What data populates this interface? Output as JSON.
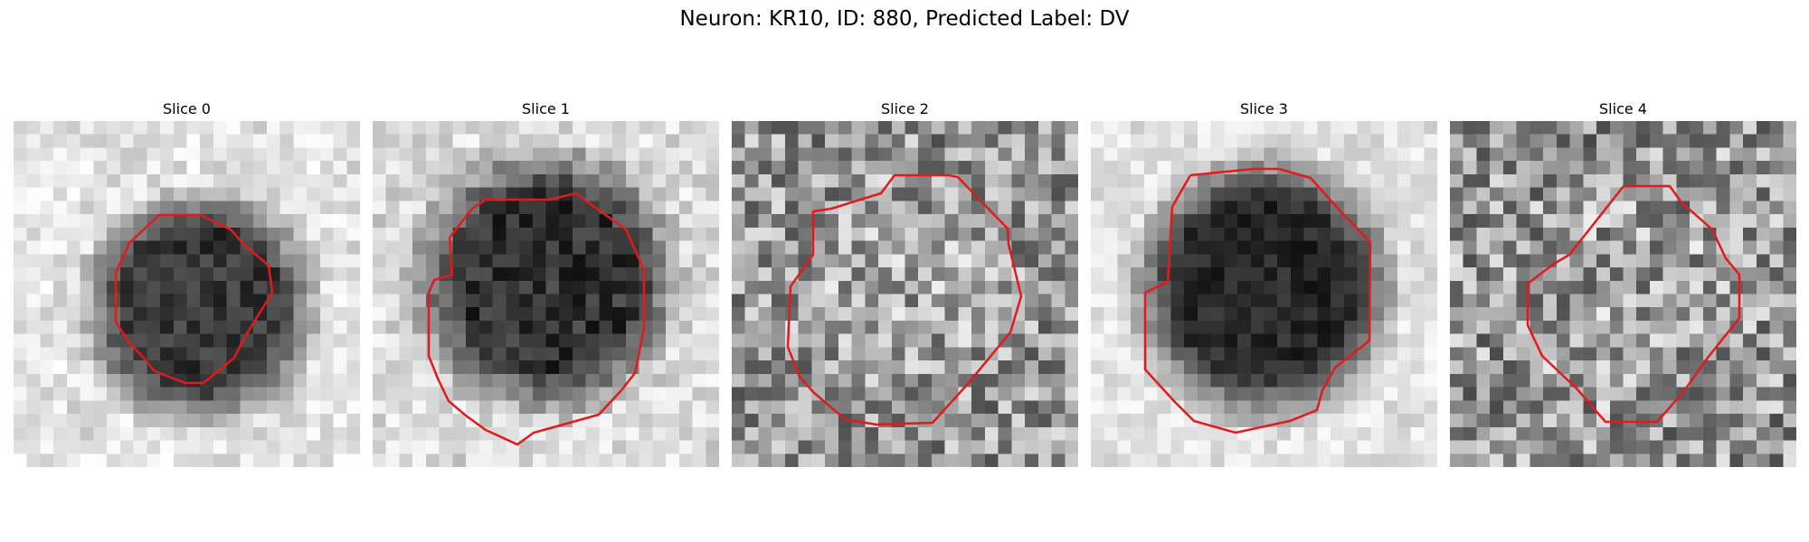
{
  "figure": {
    "title": "Neuron: KR10, ID: 880, Predicted Label: DV"
  },
  "panels": [
    {
      "title": "Slice 0"
    },
    {
      "title": "Slice 1"
    },
    {
      "title": "Slice 2"
    },
    {
      "title": "Slice 3"
    },
    {
      "title": "Slice 4"
    }
  ],
  "colors": {
    "contour": "#e31a1c"
  }
}
